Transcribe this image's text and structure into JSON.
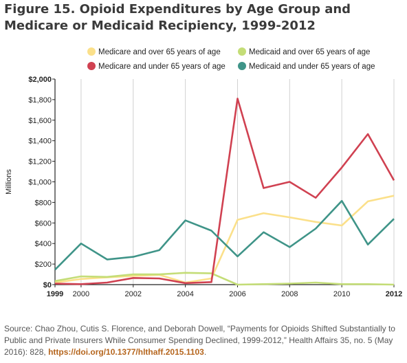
{
  "title": "Figure 15. Opioid Expenditures by Age Group and Medicare or Medicaid Recipiency, 1999-2012",
  "source": {
    "text": "Source: Chao Zhou, Cutis S. Florence, and Deborah Dowell, “Payments for Opioids Shifted Substantially to Public and Private Insurers While Consumer Spending Declined, 1999-2012,” Health Affairs 35, no. 5 (May 2016): 828,",
    "link": "https://doi.org/10.1377/hlthaff.2015.1103",
    "end": "."
  },
  "chart_data": {
    "type": "line",
    "ylabel": "Millions",
    "xlabel": "",
    "ylim": [
      0,
      2000
    ],
    "xlim": [
      1999,
      2012
    ],
    "grid": "vertical gridlines at even years",
    "legend_position": "top",
    "x": [
      1999,
      2000,
      2001,
      2002,
      2003,
      2004,
      2005,
      2006,
      2007,
      2008,
      2009,
      2010,
      2011,
      2012
    ],
    "x_ticks": [
      {
        "value": 1999,
        "label": "1999",
        "bold": true
      },
      {
        "value": 2000,
        "label": "2000",
        "bold": false
      },
      {
        "value": 2002,
        "label": "2002",
        "bold": false
      },
      {
        "value": 2004,
        "label": "2004",
        "bold": false
      },
      {
        "value": 2006,
        "label": "2006",
        "bold": false
      },
      {
        "value": 2008,
        "label": "2008",
        "bold": false
      },
      {
        "value": 2010,
        "label": "2010",
        "bold": false
      },
      {
        "value": 2012,
        "label": "2012",
        "bold": true
      }
    ],
    "y_ticks": [
      {
        "value": 0,
        "label": "$0"
      },
      {
        "value": 200,
        "label": "$200"
      },
      {
        "value": 400,
        "label": "$400"
      },
      {
        "value": 600,
        "label": "$600"
      },
      {
        "value": 800,
        "label": "$800"
      },
      {
        "value": 1000,
        "label": "$1,000"
      },
      {
        "value": 1200,
        "label": "$1,200"
      },
      {
        "value": 1400,
        "label": "$1,400"
      },
      {
        "value": 1600,
        "label": "$1,600"
      },
      {
        "value": 1800,
        "label": "$1,800"
      },
      {
        "value": 2000,
        "label": "$2,000"
      }
    ],
    "series": [
      {
        "name": "Medicare and over 65 years of age",
        "color": "#fbe08a",
        "values": [
          20,
          55,
          70,
          85,
          95,
          20,
          60,
          630,
          695,
          655,
          610,
          575,
          810,
          865
        ]
      },
      {
        "name": "Medicaid and over 65 years of age",
        "color": "#c4dd77",
        "values": [
          35,
          80,
          75,
          100,
          100,
          115,
          110,
          0,
          5,
          10,
          20,
          5,
          5,
          0
        ]
      },
      {
        "name": "Medicare and under 65 years of age",
        "color": "#d04151",
        "values": [
          10,
          5,
          20,
          65,
          60,
          15,
          25,
          1810,
          940,
          1000,
          845,
          1140,
          1465,
          1015
        ]
      },
      {
        "name": "Medicaid and under 65 years of age",
        "color": "#3f9488",
        "values": [
          145,
          400,
          245,
          270,
          335,
          625,
          525,
          275,
          510,
          365,
          545,
          815,
          390,
          640
        ]
      }
    ]
  }
}
